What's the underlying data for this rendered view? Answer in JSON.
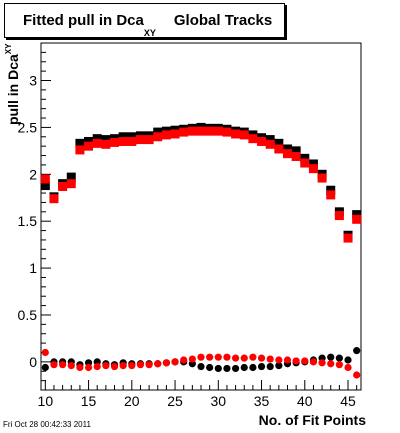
{
  "header": {
    "title_main": "Fitted pull in Dca",
    "title_sub": "XY",
    "title_rest": "Global Tracks"
  },
  "footer": {
    "timestamp": "Fri Oct 28 00:42:33 2011"
  },
  "chart_data": {
    "type": "scatter",
    "title": "Fitted pull in Dca XY   Global Tracks",
    "xlabel": "No. of Fit Points",
    "ylabel_main": "pull in Dca",
    "ylabel_sub": "XY",
    "xlim": [
      9.5,
      46.5
    ],
    "ylim": [
      -0.3,
      3.4
    ],
    "x_ticks": [
      10,
      15,
      20,
      25,
      30,
      35,
      40,
      45
    ],
    "y_ticks": [
      0,
      0.5,
      1,
      1.5,
      2,
      2.5,
      3
    ],
    "y_tick_labels": [
      "0",
      "0.5",
      "1",
      "1.5",
      "2",
      "2.5",
      "3"
    ],
    "grid": false,
    "legend": "none",
    "x": [
      10,
      11,
      12,
      13,
      14,
      15,
      16,
      17,
      18,
      19,
      20,
      21,
      22,
      23,
      24,
      25,
      26,
      27,
      28,
      29,
      30,
      31,
      32,
      33,
      34,
      35,
      36,
      37,
      38,
      39,
      40,
      41,
      42,
      43,
      44,
      45,
      46
    ],
    "series": [
      {
        "color": "#000000",
        "marker": "square",
        "values": [
          1.88,
          1.76,
          1.9,
          1.97,
          2.33,
          2.35,
          2.38,
          2.37,
          2.38,
          2.4,
          2.4,
          2.41,
          2.41,
          2.45,
          2.46,
          2.47,
          2.48,
          2.49,
          2.5,
          2.49,
          2.49,
          2.48,
          2.46,
          2.45,
          2.42,
          2.39,
          2.37,
          2.33,
          2.27,
          2.25,
          2.17,
          2.11,
          2.0,
          1.83,
          1.6,
          1.35,
          1.57
        ]
      },
      {
        "color": "#ff0000",
        "marker": "square",
        "values": [
          1.95,
          1.74,
          1.87,
          1.9,
          2.26,
          2.3,
          2.33,
          2.32,
          2.34,
          2.35,
          2.35,
          2.37,
          2.37,
          2.4,
          2.42,
          2.43,
          2.45,
          2.46,
          2.46,
          2.46,
          2.46,
          2.45,
          2.43,
          2.42,
          2.38,
          2.35,
          2.32,
          2.27,
          2.22,
          2.19,
          2.12,
          2.06,
          1.96,
          1.78,
          1.56,
          1.32,
          1.52
        ]
      },
      {
        "color": "#000000",
        "marker": "circle",
        "values": [
          -0.06,
          0.0,
          0.0,
          0.0,
          -0.03,
          -0.01,
          0.0,
          -0.02,
          -0.03,
          -0.01,
          -0.02,
          -0.02,
          -0.02,
          -0.02,
          -0.01,
          0.0,
          0.0,
          -0.02,
          -0.05,
          -0.06,
          -0.07,
          -0.07,
          -0.07,
          -0.06,
          -0.06,
          -0.05,
          -0.05,
          -0.04,
          -0.02,
          -0.01,
          0.0,
          0.02,
          0.04,
          0.05,
          0.04,
          0.02,
          0.12
        ]
      },
      {
        "color": "#ff0000",
        "marker": "circle",
        "values": [
          0.1,
          -0.03,
          -0.03,
          -0.04,
          -0.06,
          -0.06,
          -0.05,
          -0.04,
          -0.05,
          -0.04,
          -0.04,
          -0.03,
          -0.03,
          -0.02,
          -0.01,
          0.0,
          0.02,
          0.03,
          0.05,
          0.05,
          0.05,
          0.05,
          0.04,
          0.04,
          0.05,
          0.04,
          0.03,
          0.02,
          0.02,
          0.01,
          0.01,
          0.0,
          -0.01,
          -0.02,
          -0.03,
          -0.06,
          -0.14
        ]
      }
    ]
  }
}
